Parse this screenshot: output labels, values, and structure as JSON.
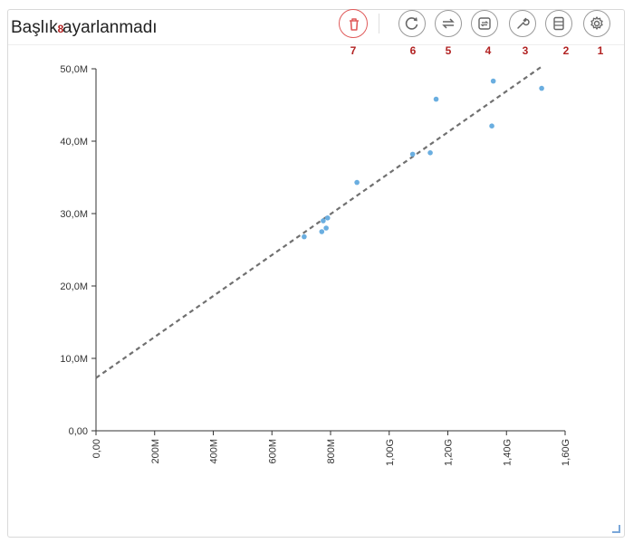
{
  "header": {
    "title": "Başlık ayarlanmadı"
  },
  "toolbar": {
    "buttons": [
      {
        "id": "delete",
        "icon": "trash-icon",
        "badge": "7"
      },
      {
        "id": "refresh",
        "icon": "refresh-icon",
        "badge": "6"
      },
      {
        "id": "swap",
        "icon": "swap-arrows-icon",
        "badge": "5"
      },
      {
        "id": "convert",
        "icon": "convert-icon",
        "badge": "4"
      },
      {
        "id": "tools",
        "icon": "wrench-icon",
        "badge": "3"
      },
      {
        "id": "data",
        "icon": "data-table-icon",
        "badge": "2"
      },
      {
        "id": "settings",
        "icon": "gear-icon",
        "badge": "1"
      }
    ],
    "axis_badge": "8"
  },
  "colors": {
    "point": "#6aaee0",
    "trendline": "#707070",
    "delete_accent": "#e05a5a",
    "badge": "#b22222"
  },
  "chart_data": {
    "type": "scatter",
    "title": "Başlık ayarlanmadı",
    "xlabel": "",
    "ylabel": "",
    "xlim": [
      0,
      1600000000
    ],
    "ylim": [
      0,
      50000000
    ],
    "x_ticks": [
      "0,00",
      "200M",
      "400M",
      "600M",
      "800M",
      "1,00G",
      "1,20G",
      "1,40G",
      "1,60G"
    ],
    "y_ticks": [
      "0,00",
      "10,0M",
      "20,0M",
      "30,0M",
      "40,0M",
      "50,0M"
    ],
    "grid": false,
    "series": [
      {
        "points": [
          {
            "x": 710000000,
            "y": 26800000
          },
          {
            "x": 770000000,
            "y": 27500000
          },
          {
            "x": 785000000,
            "y": 28000000
          },
          {
            "x": 775000000,
            "y": 29000000
          },
          {
            "x": 790000000,
            "y": 29400000
          },
          {
            "x": 890000000,
            "y": 34300000
          },
          {
            "x": 1080000000,
            "y": 38200000
          },
          {
            "x": 1140000000,
            "y": 38400000
          },
          {
            "x": 1160000000,
            "y": 45800000
          },
          {
            "x": 1350000000,
            "y": 42100000
          },
          {
            "x": 1355000000,
            "y": 48300000
          },
          {
            "x": 1520000000,
            "y": 47300000
          }
        ]
      }
    ],
    "trendline": {
      "style": "dashed",
      "x": [
        0,
        1520000000
      ],
      "y": [
        7300000,
        50300000
      ]
    }
  }
}
